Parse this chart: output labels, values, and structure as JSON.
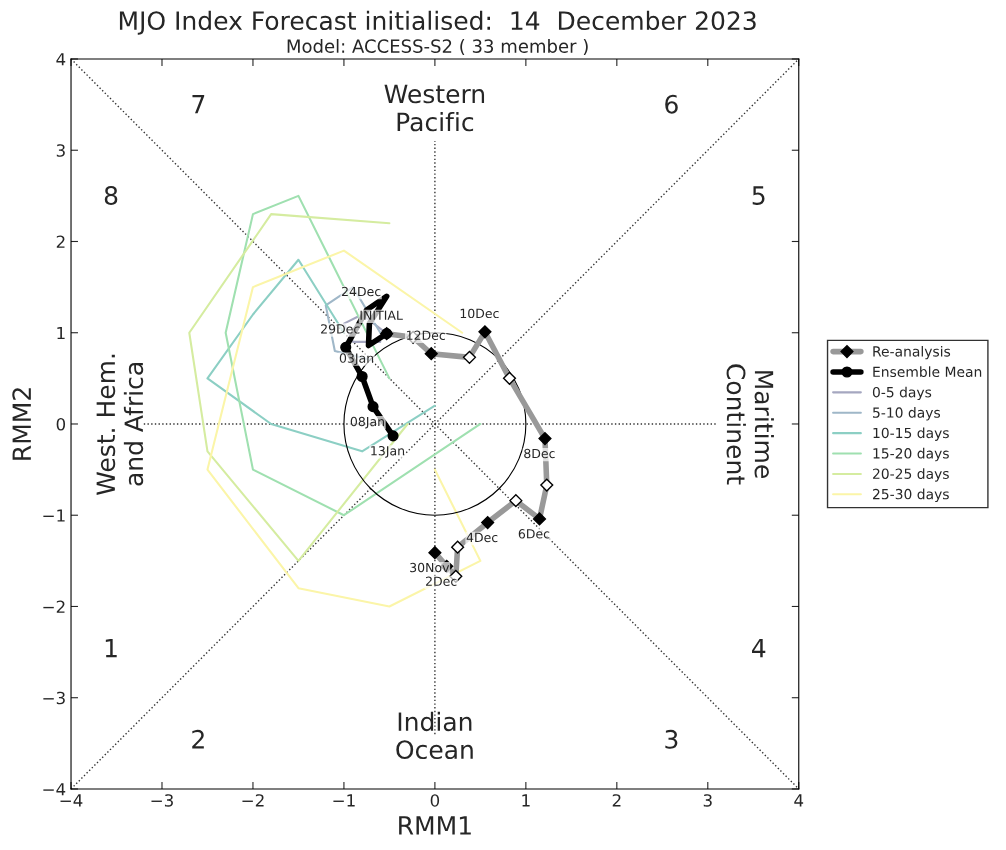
{
  "chart_data": {
    "type": "line",
    "title": "MJO Index Forecast initialised:  14  December 2023",
    "subtitle": "Model: ACCESS-S2 ( 33 member )",
    "xlabel": "RMM1",
    "ylabel": "RMM2",
    "xlim": [
      -4,
      4
    ],
    "ylim": [
      -4,
      4
    ],
    "xticks": [
      -4,
      -3,
      -2,
      -1,
      0,
      1,
      2,
      3,
      4
    ],
    "yticks": [
      -4,
      -3,
      -2,
      -1,
      0,
      1,
      2,
      3,
      4
    ],
    "grid": false,
    "legend": "right",
    "series": [
      {
        "color": "#333333",
        "line_style": "dotted",
        "x": [
          -4,
          4
        ],
        "values": [
          -4,
          4
        ]
      },
      {
        "color": "#333333",
        "line_style": "dotted",
        "x": [
          -4,
          4
        ],
        "values": [
          4,
          -4
        ]
      },
      {
        "color": "#333333",
        "line_style": "dotted",
        "x": [
          -3.2,
          3.1
        ],
        "values": [
          0,
          0
        ]
      },
      {
        "color": "#333333",
        "line_style": "dotted",
        "x": [
          0,
          0
        ],
        "values": [
          -3.4,
          3.1
        ]
      },
      {
        "name": "0-5 days",
        "color": "#a5a7c0",
        "x": [
          -0.53,
          -0.8,
          -1.0,
          -0.9,
          -0.6
        ],
        "values": [
          0.99,
          1.2,
          1.1,
          0.9,
          0.9
        ]
      },
      {
        "name": "5-10 days",
        "color": "#9fb7c8",
        "x": [
          -0.6,
          -0.9,
          -1.2,
          -1.1,
          -0.7
        ],
        "values": [
          1.0,
          1.5,
          1.3,
          0.8,
          0.7
        ]
      },
      {
        "name": "10-15 days",
        "color": "#8ccfc4",
        "x": [
          -1.0,
          -1.5,
          -2.0,
          -2.5,
          -1.8,
          -0.8,
          0
        ],
        "values": [
          1.0,
          1.8,
          1.2,
          0.5,
          0,
          -0.3,
          0.2
        ]
      },
      {
        "name": "15-20 days",
        "color": "#9fe0b0",
        "x": [
          -0.5,
          -1.5,
          -2.0,
          -2.3,
          -2.0,
          -1.0,
          0.5
        ],
        "values": [
          0.5,
          2.5,
          2.3,
          1.0,
          -0.5,
          -1.0,
          0
        ]
      },
      {
        "name": "20-25 days",
        "color": "#d5eca0",
        "x": [
          -0.3,
          -1.5,
          -2.5,
          -2.7,
          -1.8,
          -0.5
        ],
        "values": [
          0,
          -1.5,
          -0.3,
          1.0,
          2.3,
          2.2
        ]
      },
      {
        "name": "25-30 days",
        "color": "#fbf5a8",
        "x": [
          0,
          0.5,
          -0.5,
          -1.5,
          -2.5,
          -2.0,
          -1.0,
          0.3
        ],
        "values": [
          -0.5,
          -1.5,
          -2.0,
          -1.8,
          -0.5,
          1.5,
          1.9,
          1.0
        ]
      },
      {
        "name": "Re-analysis",
        "color": "#999999",
        "marker": "diamond",
        "x": [
          0,
          0.13,
          0.23,
          0.25,
          0.58,
          0.89,
          1.15,
          1.23,
          1.21,
          0.82,
          0.55,
          0.38,
          -0.04,
          -0.24,
          -0.53
        ],
        "values": [
          -1.41,
          -1.56,
          -1.67,
          -1.35,
          -1.08,
          -0.84,
          -1.04,
          -0.67,
          -0.16,
          0.5,
          1.01,
          0.73,
          0.77,
          0.95,
          0.99
        ],
        "colors": [
          "#000000",
          "#000000",
          "#ffffff",
          "#ffffff",
          "#000000",
          "#ffffff",
          "#000000",
          "#ffffff",
          "#000000",
          "#ffffff",
          "#000000",
          "#ffffff",
          "#000000",
          "#ffffff",
          "#000000"
        ]
      },
      {
        "name": "Ensemble Mean",
        "color": "#000000",
        "marker": "circle",
        "x": [
          -0.53,
          -0.73,
          -0.72,
          -0.53,
          -0.75,
          -0.98,
          -0.8,
          -0.68,
          -0.46
        ],
        "values": [
          0.99,
          0.86,
          1.1,
          1.4,
          1.25,
          0.84,
          0.52,
          0.19,
          -0.13
        ],
        "colors": [
          "#000000",
          null,
          null,
          null,
          null,
          "#000000",
          "#000000",
          "#000000",
          "#000000"
        ]
      }
    ],
    "annotations": [
      {
        "text": "30Nov",
        "x": 0,
        "y": -1.41
      },
      {
        "text": "2Dec",
        "x": 0.13,
        "y": -1.56
      },
      {
        "text": "4Dec",
        "x": 0.58,
        "y": -1.08
      },
      {
        "text": "6Dec",
        "x": 1.15,
        "y": -1.04
      },
      {
        "text": "8Dec",
        "x": 1.21,
        "y": -0.16
      },
      {
        "text": "10Dec",
        "x": 0.55,
        "y": 1.01
      },
      {
        "text": "12Dec",
        "x": -0.04,
        "y": 0.77
      },
      {
        "text": "INITIAL",
        "x": -0.53,
        "y": 0.99
      },
      {
        "text": "24Dec",
        "x": -0.75,
        "y": 1.25
      },
      {
        "text": "29Dec",
        "x": -0.98,
        "y": 0.84
      },
      {
        "text": "03Jan",
        "x": -0.8,
        "y": 0.52
      },
      {
        "text": "08Jan",
        "x": -0.68,
        "y": 0.19
      },
      {
        "text": "13Jan",
        "x": -0.46,
        "y": -0.13
      },
      "1",
      "2",
      "3",
      "4",
      "5",
      "6",
      "7",
      "8",
      "Western\nPacific",
      "Indian\nOcean",
      "West. Hem.\nand Africa",
      "Maritime\nContinent"
    ]
  }
}
